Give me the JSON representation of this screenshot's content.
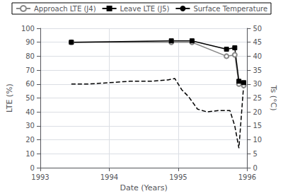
{
  "chart_data": {
    "type": "line",
    "xlabel": "Date (Years)",
    "ylabel": "LTE (%)",
    "y2label": "Ts (°C)",
    "xlim": [
      1993,
      1996
    ],
    "xticks": [
      1993,
      1994,
      1995,
      1996
    ],
    "ylim": [
      0,
      100
    ],
    "yticks": [
      0,
      10,
      20,
      30,
      40,
      50,
      60,
      70,
      80,
      90,
      100
    ],
    "y2lim": [
      0,
      50
    ],
    "y2ticks": [
      0,
      5,
      10,
      15,
      20,
      25,
      30,
      35,
      40,
      45,
      50
    ],
    "grid": true,
    "legend": "top",
    "series": [
      {
        "name": "Approach LTE (J4)",
        "color": "#888888",
        "marker": "circle",
        "x": [
          1993.45,
          1994.9,
          1995.2,
          1995.7,
          1995.82,
          1995.88,
          1995.95
        ],
        "values": [
          90,
          90,
          90,
          80,
          81,
          60,
          59
        ]
      },
      {
        "name": "Leave LTE (J5)",
        "color": "#000000",
        "marker": "square",
        "x": [
          1993.45,
          1994.9,
          1995.2,
          1995.7,
          1995.82,
          1995.88,
          1995.95
        ],
        "values": [
          90,
          91,
          91,
          85,
          86,
          62,
          61
        ]
      },
      {
        "name": "Surface Temperature",
        "color": "#000000",
        "marker": "none",
        "line_style": "dashed",
        "axis": "y2",
        "x": [
          1993.45,
          1993.7,
          1994.0,
          1994.3,
          1994.6,
          1994.85,
          1994.95,
          1995.05,
          1995.15,
          1995.28,
          1995.42,
          1995.58,
          1995.68,
          1995.75,
          1995.82,
          1995.88,
          1995.95
        ],
        "values": [
          30,
          30,
          30.5,
          31,
          31,
          31.5,
          32,
          28,
          25.5,
          21,
          20,
          20.5,
          20.5,
          20.5,
          15,
          7,
          30
        ]
      }
    ]
  }
}
